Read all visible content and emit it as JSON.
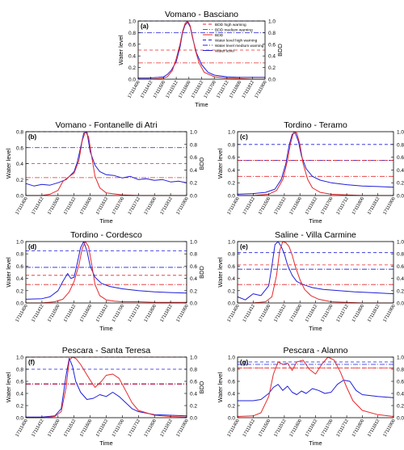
{
  "colors": {
    "water": "#1f1fdc",
    "bdd": "#e6282a",
    "water_warning": "#1f1fdc",
    "bdd_warning": "#e6282a",
    "axis": "#000000"
  },
  "legend": {
    "entries": [
      {
        "label": "BDD high warning",
        "color": "#e6282a",
        "style": "dashed"
      },
      {
        "label": "BDD medium warning",
        "color": "#e6282a",
        "style": "dashdot"
      },
      {
        "label": "BDD",
        "color": "#e6282a",
        "style": "solid"
      },
      {
        "label": "Water level high warning",
        "color": "#1f1fdc",
        "style": "dashed"
      },
      {
        "label": "Water level medium warning",
        "color": "#1f1fdc",
        "style": "dashdot"
      },
      {
        "label": "Water level",
        "color": "#1f1fdc",
        "style": "solid"
      }
    ]
  },
  "chart_data": [
    {
      "type": "line",
      "panel": "(a)",
      "title": "Vomano - Basciano",
      "xlabel": "Time",
      "ylabel_left": "Water level",
      "ylabel_right": "BDD",
      "x_ticks": [
        "17111400",
        "17111412",
        "17111500",
        "17111512",
        "17111600",
        "17111612",
        "17111700",
        "17111712",
        "17111800",
        "17111812",
        "17111900"
      ],
      "ylim": [
        0,
        1.0
      ],
      "y_ticks": [
        "0.0",
        "0.2",
        "0.4",
        "0.6",
        "0.8",
        "1.0"
      ],
      "y2_ticks": [
        "0.0",
        "0.2",
        "0.4",
        "0.6",
        "0.8",
        "1.0"
      ],
      "thresholds": {
        "water_high": 1.0,
        "water_medium": 0.8,
        "bdd_high": 0.5,
        "bdd_medium": 0.28
      },
      "series": [
        {
          "name": "Water level",
          "x": [
            0,
            0.8,
            1.6,
            2,
            2.3,
            2.6,
            3,
            3.3,
            3.5,
            3.7,
            3.9,
            4.1,
            4.3,
            4.6,
            5,
            5.5,
            6,
            7,
            8,
            9,
            10
          ],
          "values": [
            0.02,
            0.02,
            0.03,
            0.04,
            0.08,
            0.15,
            0.3,
            0.55,
            0.8,
            0.93,
            0.98,
            0.9,
            0.7,
            0.45,
            0.25,
            0.12,
            0.07,
            0.04,
            0.03,
            0.03,
            0.03
          ]
        },
        {
          "name": "BDD",
          "x": [
            0,
            1,
            1.8,
            2.3,
            2.7,
            3,
            3.3,
            3.5,
            3.7,
            3.9,
            4.1,
            4.3,
            4.5,
            4.8,
            5.2,
            6,
            7,
            8,
            9,
            10
          ],
          "values": [
            0,
            0,
            0.01,
            0.04,
            0.15,
            0.35,
            0.6,
            0.82,
            0.96,
            1.0,
            0.92,
            0.72,
            0.5,
            0.28,
            0.12,
            0.04,
            0.02,
            0.01,
            0,
            0
          ]
        }
      ]
    },
    {
      "type": "line",
      "panel": "(b)",
      "title": "Vomano - Fontanelle di Atri",
      "xlabel": "Time",
      "ylabel_left": "Water level",
      "ylabel_right": "BDD",
      "x_ticks": [
        "17111400",
        "17111412",
        "17111500",
        "17111512",
        "17111600",
        "17111612",
        "17111700",
        "17111712",
        "17111800",
        "17111812",
        "17111900"
      ],
      "ylim": [
        0,
        0.8
      ],
      "y_ticks": [
        "0.0",
        "0.2",
        "0.4",
        "0.6",
        "0.8"
      ],
      "y2_ticks": [
        "0.0",
        "0.2",
        "0.4",
        "0.6",
        "0.8",
        "1.0"
      ],
      "thresholds": {
        "water_high": 0.8,
        "water_medium": 0.6,
        "bdd_high": 0.5,
        "bdd_medium": 0.28
      },
      "series": [
        {
          "name": "Water level",
          "x": [
            0,
            0.5,
            1,
            1.5,
            2,
            2.5,
            3,
            3.2,
            3.4,
            3.6,
            3.8,
            4,
            4.3,
            4.6,
            5,
            5.5,
            6,
            6.5,
            7,
            7.5,
            8,
            8.5,
            9,
            9.5,
            10
          ],
          "values": [
            0.15,
            0.12,
            0.14,
            0.13,
            0.16,
            0.2,
            0.3,
            0.42,
            0.6,
            0.78,
            0.8,
            0.55,
            0.38,
            0.3,
            0.26,
            0.25,
            0.22,
            0.24,
            0.2,
            0.21,
            0.19,
            0.2,
            0.17,
            0.18,
            0.16
          ]
        },
        {
          "name": "BDD",
          "x": [
            0,
            1,
            1.5,
            2,
            2.3,
            2.6,
            3,
            3.3,
            3.5,
            3.7,
            3.9,
            4.1,
            4.3,
            4.6,
            5,
            6,
            7,
            8,
            9,
            10
          ],
          "values": [
            0,
            0,
            0.02,
            0.08,
            0.22,
            0.28,
            0.35,
            0.55,
            0.85,
            1.0,
            0.92,
            0.6,
            0.3,
            0.12,
            0.04,
            0.01,
            0,
            0,
            0,
            0
          ]
        }
      ]
    },
    {
      "type": "line",
      "panel": "(c)",
      "title": "Tordino - Teramo",
      "xlabel": "Time",
      "ylabel_left": "Water level",
      "ylabel_right": "BDD",
      "x_ticks": [
        "17111400",
        "17111412",
        "17111500",
        "17111512",
        "17111600",
        "17111612",
        "17111700",
        "17111712",
        "17111800",
        "17111812",
        "17111900"
      ],
      "ylim": [
        0,
        1.0
      ],
      "y_ticks": [
        "0.0",
        "0.2",
        "0.4",
        "0.6",
        "0.8",
        "1.0"
      ],
      "y2_ticks": [
        "0.0",
        "0.2",
        "0.4",
        "0.6",
        "0.8",
        "1.0"
      ],
      "thresholds": {
        "water_high": 0.8,
        "water_medium": 0.55,
        "bdd_high": 0.55,
        "bdd_medium": 0.3
      },
      "series": [
        {
          "name": "Water level",
          "x": [
            0,
            1,
            1.8,
            2.4,
            2.8,
            3.1,
            3.3,
            3.5,
            3.7,
            3.9,
            4.1,
            4.4,
            4.8,
            5.3,
            6,
            7,
            8,
            9,
            10
          ],
          "values": [
            0.02,
            0.03,
            0.05,
            0.1,
            0.25,
            0.5,
            0.78,
            0.96,
            0.98,
            0.85,
            0.62,
            0.42,
            0.3,
            0.24,
            0.2,
            0.17,
            0.15,
            0.14,
            0.13
          ]
        },
        {
          "name": "BDD",
          "x": [
            0,
            1,
            2,
            2.5,
            2.9,
            3.2,
            3.4,
            3.6,
            3.8,
            4,
            4.2,
            4.5,
            4.8,
            5.3,
            6,
            7,
            8,
            9,
            10
          ],
          "values": [
            0,
            0,
            0.02,
            0.08,
            0.25,
            0.55,
            0.82,
            1.0,
            0.98,
            0.8,
            0.5,
            0.25,
            0.12,
            0.05,
            0.02,
            0.01,
            0,
            0,
            0
          ]
        }
      ]
    },
    {
      "type": "line",
      "panel": "(d)",
      "title": "Tordino - Cordesco",
      "xlabel": "Time",
      "ylabel_left": "Water level",
      "ylabel_right": "BDD",
      "x_ticks": [
        "17111400",
        "17111412",
        "17111500",
        "17111512",
        "17111600",
        "17111612",
        "17111700",
        "17111712",
        "17111800",
        "17111812",
        "17111900"
      ],
      "ylim": [
        0,
        1.0
      ],
      "y_ticks": [
        "0.0",
        "0.2",
        "0.4",
        "0.6",
        "0.8",
        "1.0"
      ],
      "y2_ticks": [
        "0.0",
        "0.2",
        "0.4",
        "0.6",
        "0.8",
        "1.0"
      ],
      "thresholds": {
        "water_high": 0.85,
        "water_medium": 0.58,
        "bdd_high": 0.45,
        "bdd_medium": 0.3
      },
      "series": [
        {
          "name": "Water level",
          "x": [
            0,
            1,
            1.5,
            2,
            2.3,
            2.6,
            2.8,
            3,
            3.2,
            3.4,
            3.6,
            3.8,
            4,
            4.3,
            4.7,
            5.2,
            6,
            7,
            8,
            9,
            10
          ],
          "values": [
            0.06,
            0.07,
            0.1,
            0.2,
            0.35,
            0.48,
            0.4,
            0.42,
            0.65,
            0.9,
            1.0,
            0.85,
            0.6,
            0.42,
            0.32,
            0.27,
            0.23,
            0.2,
            0.18,
            0.17,
            0.16
          ]
        },
        {
          "name": "BDD",
          "x": [
            0,
            1,
            1.8,
            2.3,
            2.7,
            3,
            3.3,
            3.5,
            3.7,
            3.9,
            4.1,
            4.3,
            4.6,
            5,
            5.5,
            6,
            7,
            8,
            9,
            10
          ],
          "values": [
            0,
            0,
            0.02,
            0.06,
            0.18,
            0.35,
            0.62,
            0.88,
            1.0,
            0.92,
            0.62,
            0.3,
            0.12,
            0.05,
            0.03,
            0.02,
            0.02,
            0.01,
            0.01,
            0.01
          ]
        }
      ]
    },
    {
      "type": "line",
      "panel": "(e)",
      "title": "Saline - Villa Carmine",
      "xlabel": "Time",
      "ylabel_left": "Water level",
      "ylabel_right": "BDD",
      "x_ticks": [
        "17111400",
        "17111412",
        "17111500",
        "17111512",
        "17111600",
        "17111612",
        "17111700",
        "17111712",
        "17111800",
        "17111812",
        "17111900"
      ],
      "ylim": [
        0,
        1.0
      ],
      "y_ticks": [
        "0.0",
        "0.2",
        "0.4",
        "0.6",
        "0.8",
        "1.0"
      ],
      "y2_ticks": [
        "0.0",
        "0.2",
        "0.4",
        "0.6",
        "0.8",
        "1.0"
      ],
      "thresholds": {
        "water_high": 0.82,
        "water_medium": 0.55,
        "bdd_high": 0.62,
        "bdd_medium": 0.3
      },
      "series": [
        {
          "name": "Water level",
          "x": [
            0,
            0.5,
            1,
            1.5,
            2,
            2.2,
            2.4,
            2.6,
            2.8,
            3,
            3.2,
            3.5,
            3.8,
            4.2,
            4.8,
            5.5,
            6.5,
            7.5,
            8.5,
            10
          ],
          "values": [
            0.1,
            0.05,
            0.15,
            0.12,
            0.28,
            0.6,
            0.95,
            1.0,
            0.92,
            0.8,
            0.62,
            0.45,
            0.35,
            0.3,
            0.25,
            0.22,
            0.2,
            0.18,
            0.17,
            0.15
          ]
        },
        {
          "name": "BDD",
          "x": [
            0,
            1,
            1.8,
            2.2,
            2.5,
            2.7,
            2.9,
            3.1,
            3.3,
            3.5,
            3.7,
            4,
            4.3,
            4.7,
            5.2,
            6,
            7,
            8,
            9,
            10
          ],
          "values": [
            0,
            0,
            0.02,
            0.1,
            0.45,
            0.85,
            1.0,
            0.98,
            0.92,
            0.78,
            0.6,
            0.38,
            0.22,
            0.12,
            0.06,
            0.02,
            0.01,
            0,
            0,
            0
          ]
        }
      ]
    },
    {
      "type": "line",
      "panel": "(f)",
      "title": "Pescara - Santa Teresa",
      "xlabel": "Time",
      "ylabel_left": "Water level",
      "ylabel_right": "BDD",
      "x_ticks": [
        "17111400",
        "17111412",
        "17111500",
        "17111512",
        "17111600",
        "17111612",
        "17111700",
        "17111712",
        "17111800",
        "17111812",
        "17111900"
      ],
      "ylim": [
        0,
        1.0
      ],
      "y_ticks": [
        "0.0",
        "0.2",
        "0.4",
        "0.6",
        "0.8",
        "1.0"
      ],
      "y2_ticks": [
        "0.0",
        "0.2",
        "0.4",
        "0.6",
        "0.8",
        "1.0"
      ],
      "thresholds": {
        "water_high": 0.8,
        "water_medium": 0.56,
        "bdd_high": 1.0,
        "bdd_medium": 0.55
      },
      "series": [
        {
          "name": "Water level",
          "x": [
            0,
            1,
            1.8,
            2.2,
            2.5,
            2.7,
            2.9,
            3.1,
            3.4,
            3.8,
            4.2,
            4.6,
            5,
            5.4,
            5.8,
            6.2,
            6.6,
            7,
            8,
            9,
            10
          ],
          "values": [
            0.01,
            0.01,
            0.03,
            0.15,
            0.7,
            0.98,
            0.85,
            0.6,
            0.42,
            0.3,
            0.32,
            0.38,
            0.35,
            0.42,
            0.35,
            0.25,
            0.15,
            0.1,
            0.05,
            0.04,
            0.03
          ]
        },
        {
          "name": "BDD",
          "x": [
            0,
            1,
            1.8,
            2.2,
            2.5,
            2.7,
            2.9,
            3.1,
            3.4,
            3.7,
            4,
            4.3,
            4.7,
            5,
            5.4,
            5.8,
            6.2,
            6.6,
            7,
            8,
            9,
            10
          ],
          "values": [
            0,
            0,
            0.02,
            0.1,
            0.5,
            0.95,
            1.0,
            0.98,
            0.88,
            0.75,
            0.62,
            0.5,
            0.6,
            0.7,
            0.72,
            0.65,
            0.45,
            0.25,
            0.12,
            0.04,
            0.02,
            0.01
          ]
        }
      ]
    },
    {
      "type": "line",
      "panel": "(g)",
      "title": "Pescara - Alanno",
      "xlabel": "Time",
      "ylabel_left": "Water level",
      "ylabel_right": "BDD",
      "x_ticks": [
        "17111400",
        "17111412",
        "17111500",
        "17111512",
        "17111600",
        "17111612",
        "17111700",
        "17111712",
        "17111800",
        "17111812",
        "17111900"
      ],
      "ylim": [
        0,
        1.0
      ],
      "y_ticks": [
        "0.0",
        "0.2",
        "0.4",
        "0.6",
        "0.8",
        "1.0"
      ],
      "y2_ticks": [
        "0.0",
        "0.2",
        "0.4",
        "0.6",
        "0.8",
        "1.0"
      ],
      "thresholds": {
        "water_high": 0.92,
        "water_medium": 0.88,
        "bdd_high": 0.82,
        "bdd_medium": 0.82
      },
      "series": [
        {
          "name": "Water level",
          "x": [
            0,
            1,
            1.5,
            2,
            2.3,
            2.6,
            2.9,
            3.2,
            3.5,
            3.8,
            4.1,
            4.4,
            4.8,
            5.2,
            5.6,
            6,
            6.4,
            6.8,
            7.2,
            7.6,
            8,
            9,
            10
          ],
          "values": [
            0.28,
            0.28,
            0.3,
            0.4,
            0.5,
            0.55,
            0.45,
            0.52,
            0.42,
            0.38,
            0.44,
            0.4,
            0.48,
            0.45,
            0.4,
            0.42,
            0.55,
            0.62,
            0.6,
            0.45,
            0.38,
            0.35,
            0.33
          ]
        },
        {
          "name": "BDD",
          "x": [
            0,
            1,
            1.5,
            2,
            2.3,
            2.6,
            2.9,
            3.2,
            3.5,
            3.8,
            4.2,
            4.6,
            5,
            5.4,
            5.8,
            6.2,
            6.6,
            7,
            7.4,
            8,
            9,
            10
          ],
          "values": [
            0.02,
            0.03,
            0.08,
            0.35,
            0.72,
            0.92,
            0.88,
            0.9,
            0.78,
            0.92,
            0.95,
            0.8,
            0.72,
            0.88,
            1.0,
            0.95,
            0.75,
            0.5,
            0.28,
            0.12,
            0.05,
            0.02
          ]
        }
      ]
    }
  ]
}
